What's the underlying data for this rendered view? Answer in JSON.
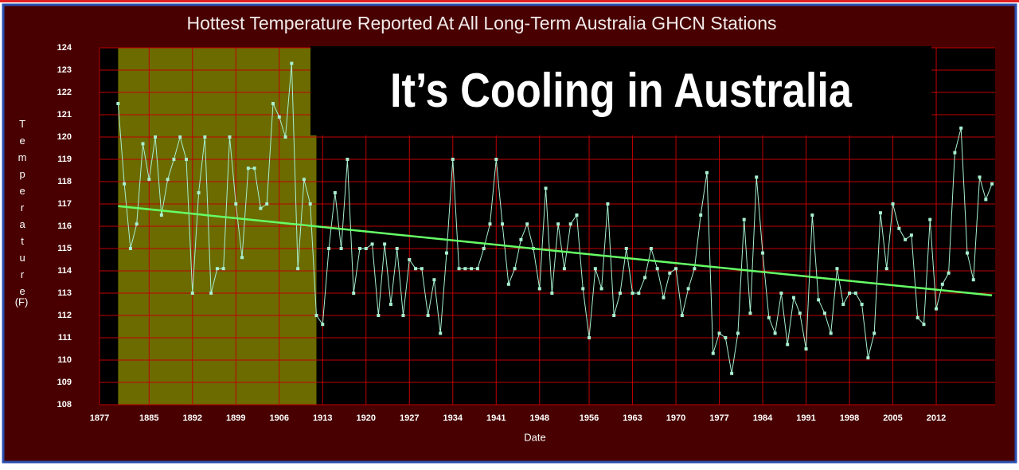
{
  "chart_data": {
    "type": "line",
    "title": "Hottest Temperature Reported At All Long-Term Australia GHCN Stations",
    "overlay_text": "It’s Cooling in Australia",
    "y_label": "Temperature",
    "y_unit": "(F)",
    "x_label": "Date",
    "x": [
      1880,
      1881,
      1882,
      1883,
      1884,
      1885,
      1886,
      1887,
      1888,
      1889,
      1890,
      1891,
      1892,
      1893,
      1894,
      1895,
      1896,
      1897,
      1898,
      1899,
      1900,
      1901,
      1902,
      1903,
      1904,
      1905,
      1906,
      1907,
      1908,
      1909,
      1910,
      1911,
      1912,
      1913,
      1914,
      1915,
      1916,
      1917,
      1918,
      1919,
      1920,
      1921,
      1922,
      1923,
      1924,
      1925,
      1926,
      1927,
      1928,
      1929,
      1930,
      1931,
      1932,
      1933,
      1934,
      1935,
      1936,
      1937,
      1938,
      1939,
      1940,
      1941,
      1942,
      1943,
      1944,
      1945,
      1946,
      1947,
      1948,
      1949,
      1950,
      1951,
      1952,
      1953,
      1954,
      1955,
      1956,
      1957,
      1958,
      1959,
      1960,
      1961,
      1962,
      1963,
      1964,
      1965,
      1966,
      1967,
      1968,
      1969,
      1970,
      1971,
      1972,
      1973,
      1974,
      1975,
      1976,
      1977,
      1978,
      1979,
      1980,
      1981,
      1982,
      1983,
      1984,
      1985,
      1986,
      1987,
      1988,
      1989,
      1990,
      1991,
      1992,
      1993,
      1994,
      1995,
      1996,
      1997,
      1998,
      1999,
      2000,
      2001,
      2002,
      2003,
      2004,
      2005,
      2006,
      2007,
      2008,
      2009,
      2010,
      2011,
      2012,
      2013,
      2014,
      2015,
      2016,
      2017,
      2018,
      2019,
      2020,
      2021
    ],
    "series": [
      {
        "name": "Hottest Temperature",
        "color": "#a8f0d0",
        "values": [
          121.5,
          117.9,
          115,
          116.1,
          119.7,
          118.1,
          120,
          116.5,
          118.1,
          119,
          120,
          119,
          113,
          117.5,
          120,
          113,
          114.1,
          114.1,
          120,
          117,
          114.6,
          118.6,
          118.6,
          116.8,
          117,
          121.5,
          120.9,
          120,
          123.3,
          114.1,
          118.1,
          117,
          112,
          111.6,
          115,
          117.5,
          115,
          119,
          113,
          115,
          115,
          115.2,
          112,
          115.2,
          112.5,
          115,
          112,
          114.5,
          114.1,
          114.1,
          112,
          113.6,
          111.2,
          114.8,
          119,
          114.1,
          114.1,
          114.1,
          114.1,
          115,
          116.1,
          119,
          116.1,
          113.4,
          114.1,
          115.4,
          116.1,
          115,
          113.2,
          117.7,
          113,
          116.1,
          114.1,
          116.1,
          116.5,
          113.2,
          111,
          114.1,
          113.2,
          117,
          112,
          113,
          115,
          113,
          113,
          113.7,
          115,
          114.1,
          112.8,
          113.9,
          114.1,
          112,
          113.2,
          114.1,
          116.5,
          118.4,
          110.3,
          111.2,
          111,
          109.4,
          111.2,
          116.3,
          112.1,
          118.2,
          114.8,
          111.9,
          111.2,
          113,
          110.7,
          112.8,
          112.1,
          110.5,
          116.5,
          112.7,
          112.1,
          111.2,
          114.1,
          112.5,
          113,
          113,
          112.5,
          110.1,
          111.2,
          116.6,
          114.1,
          117,
          115.9,
          115.4,
          115.6,
          111.9,
          111.6,
          116.3,
          112.3,
          113.4,
          113.9,
          119.3,
          120.4,
          114.8,
          113.6,
          118.2,
          117.2,
          117.9
        ]
      }
    ],
    "trend": {
      "x": [
        1880,
        2021
      ],
      "y": [
        116.9,
        112.9
      ],
      "color": "#66ff66"
    },
    "shaded_range": {
      "x": [
        1880,
        1912
      ],
      "color": "#6b6b00"
    },
    "xlim": [
      1877,
      2021.5
    ],
    "ylim": [
      108,
      124
    ],
    "xticks": [
      1877,
      1885,
      1892,
      1899,
      1906,
      1913,
      1920,
      1927,
      1934,
      1941,
      1948,
      1956,
      1963,
      1970,
      1977,
      1984,
      1991,
      1998,
      2005,
      2012
    ],
    "yticks": [
      108,
      109,
      110,
      111,
      112,
      113,
      114,
      115,
      116,
      117,
      118,
      119,
      120,
      121,
      122,
      123,
      124
    ],
    "grid": true,
    "grid_color": "#c00000"
  }
}
